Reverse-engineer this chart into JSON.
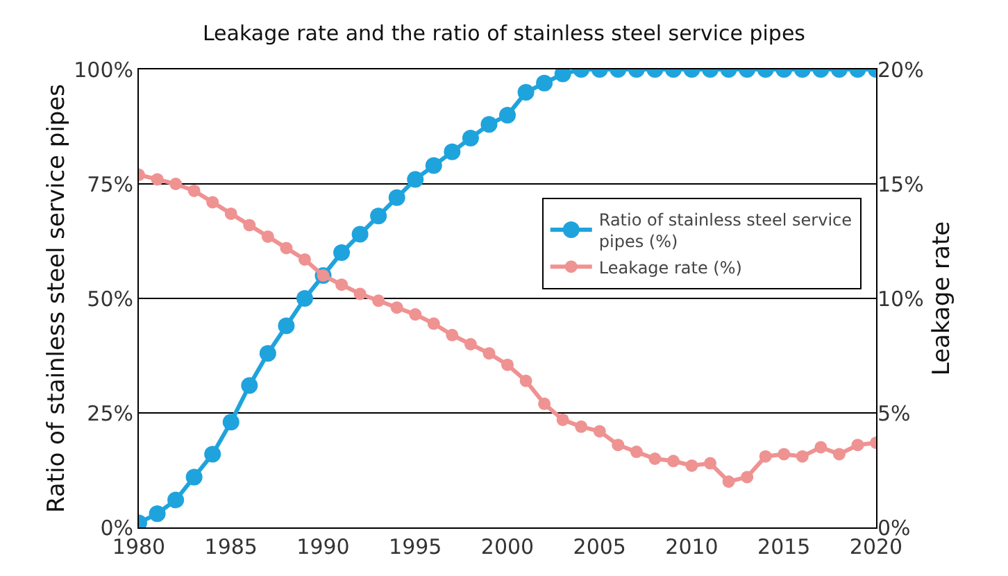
{
  "chart_data": {
    "type": "line",
    "title": "Leakage rate and the ratio of stainless steel service pipes",
    "ylabel": "Ratio of stainless steel service pipes",
    "y2label": "Leakage rate",
    "x": [
      1980,
      1981,
      1982,
      1983,
      1984,
      1985,
      1986,
      1987,
      1988,
      1989,
      1990,
      1991,
      1992,
      1993,
      1994,
      1995,
      1996,
      1997,
      1998,
      1999,
      2000,
      2001,
      2002,
      2003,
      2004,
      2005,
      2006,
      2007,
      2008,
      2009,
      2010,
      2011,
      2012,
      2013,
      2014,
      2015,
      2016,
      2017,
      2018,
      2019,
      2020
    ],
    "series": [
      {
        "name": "Ratio of stainless steel service pipes (%)",
        "color": "#1fa3dd",
        "values": [
          1,
          3,
          6,
          11,
          16,
          23,
          31,
          38,
          44,
          50,
          55,
          60,
          64,
          68,
          72,
          76,
          79,
          82,
          85,
          88,
          90,
          95,
          97,
          99,
          100,
          100,
          100,
          100,
          100,
          100,
          100,
          100,
          100,
          100,
          100,
          100,
          100,
          100,
          100,
          100,
          100
        ]
      },
      {
        "name": "Leakage rate (%)",
        "color": "#ef9292",
        "axis": "y2",
        "values": [
          15.4,
          15.2,
          15.0,
          14.7,
          14.2,
          13.7,
          13.2,
          12.7,
          12.2,
          11.7,
          11.0,
          10.6,
          10.2,
          9.9,
          9.6,
          9.3,
          8.9,
          8.4,
          8.0,
          7.6,
          7.1,
          6.4,
          5.4,
          4.7,
          4.4,
          4.2,
          3.6,
          3.3,
          3.0,
          2.9,
          2.7,
          2.8,
          2.0,
          2.2,
          3.1,
          3.2,
          3.1,
          3.5,
          3.2,
          3.6,
          3.7
        ]
      }
    ],
    "xlim": [
      1980,
      2020
    ],
    "xticks": [
      1980,
      1985,
      1990,
      1995,
      2000,
      2005,
      2010,
      2015,
      2020
    ],
    "ylim": [
      0,
      100
    ],
    "yticks": [
      {
        "value": 0,
        "label": "0%"
      },
      {
        "value": 25,
        "label": "25%"
      },
      {
        "value": 50,
        "label": "50%"
      },
      {
        "value": 75,
        "label": "75%"
      },
      {
        "value": 100,
        "label": "100%"
      }
    ],
    "y2lim": [
      0,
      20
    ],
    "y2ticks": [
      {
        "value": 0,
        "label": "0%"
      },
      {
        "value": 5,
        "label": "5%"
      },
      {
        "value": 10,
        "label": "10%"
      },
      {
        "value": 15,
        "label": "15%"
      },
      {
        "value": 20,
        "label": "20%"
      }
    ],
    "grid": "y",
    "legend": "right",
    "marker": "circle",
    "line_style": "solid"
  }
}
